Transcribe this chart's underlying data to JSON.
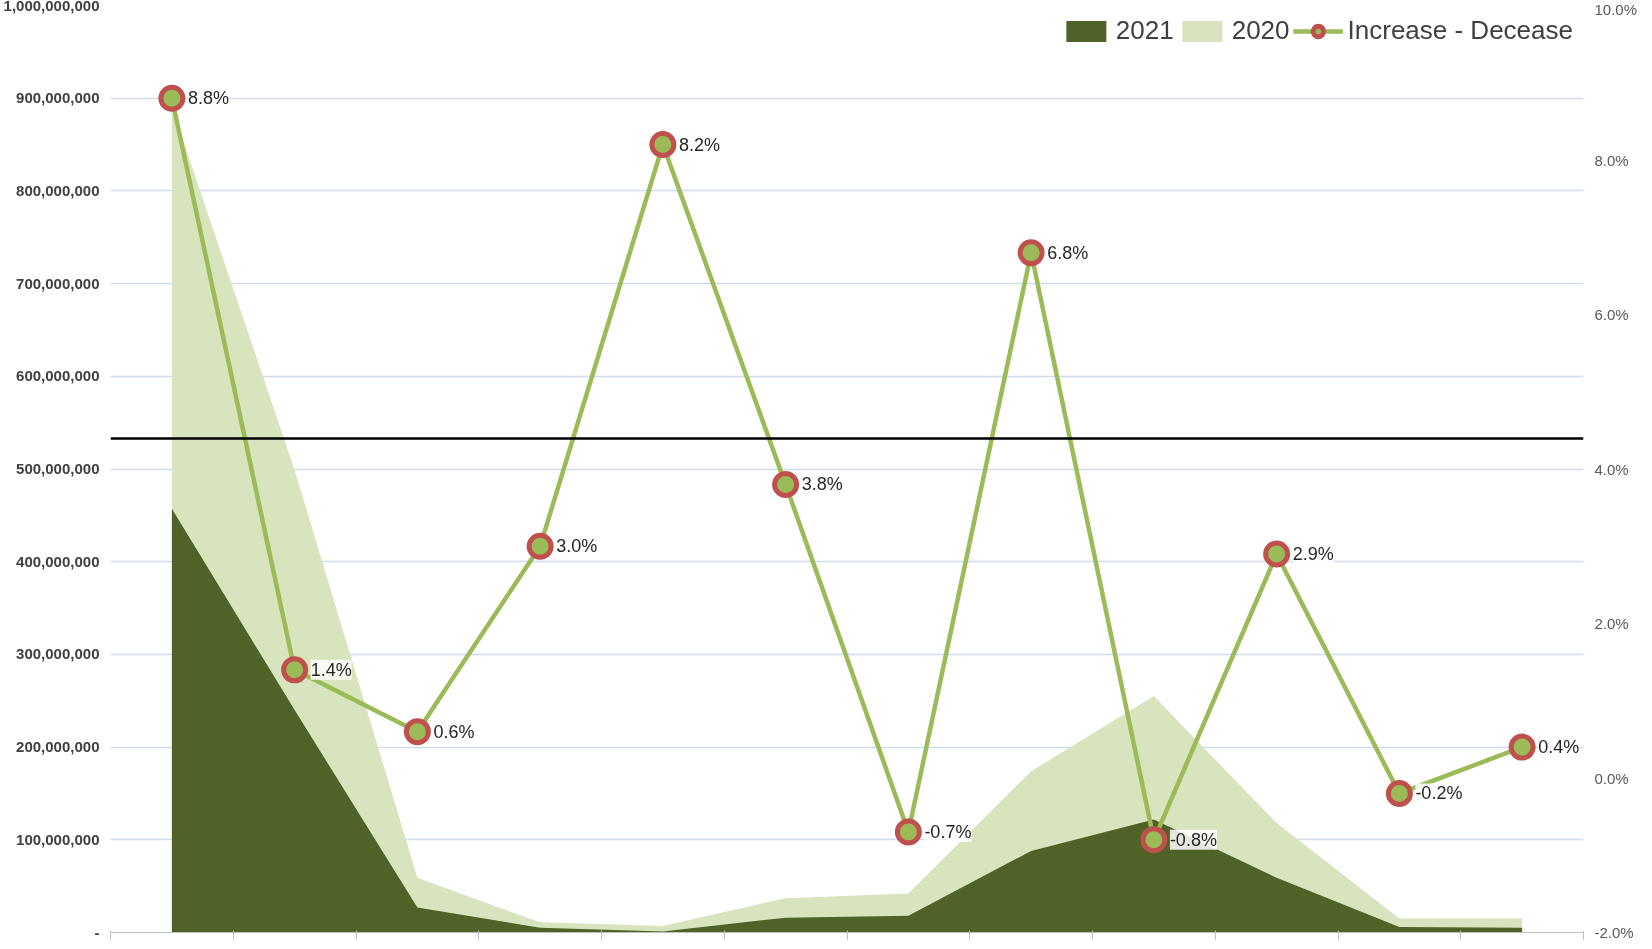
{
  "chart_data": {
    "type": "area",
    "categories": [
      null,
      null,
      null,
      null,
      null,
      null,
      null,
      null,
      null,
      null,
      null,
      null
    ],
    "series": [
      {
        "name": "2021",
        "color": "#4f6228",
        "values": [
          457000000,
          240000000,
          27000000,
          5000000,
          1000000,
          16000000,
          18000000,
          88000000,
          122000000,
          59000000,
          6000000,
          5000000
        ]
      },
      {
        "name": "2020",
        "color": "#d7e4bd",
        "values": [
          890000000,
          499000000,
          59000000,
          11000000,
          7000000,
          37000000,
          42000000,
          174000000,
          255000000,
          118000000,
          15000000,
          15000000
        ]
      },
      {
        "name": "Increase - Decease",
        "type": "line",
        "axis": "y2",
        "color": "#9bbb59",
        "marker": "circle",
        "values": [
          8.8,
          1.4,
          0.6,
          3.0,
          8.2,
          3.8,
          -0.7,
          6.8,
          -0.8,
          2.9,
          -0.2,
          0.4
        ],
        "value_labels": [
          "8.8%",
          "1.4%",
          "0.6%",
          "3.0%",
          "8.2%",
          "3.8%",
          "-0.7%",
          "6.8%",
          "-0.8%",
          "2.9%",
          "-0.2%",
          "0.4%"
        ]
      }
    ],
    "ylim": [
      0,
      1000000000
    ],
    "yticks": [
      {
        "value": 0,
        "label": "-"
      },
      {
        "value": 100000000,
        "label": "100,000,000"
      },
      {
        "value": 200000000,
        "label": "200,000,000"
      },
      {
        "value": 300000000,
        "label": "300,000,000"
      },
      {
        "value": 400000000,
        "label": "400,000,000"
      },
      {
        "value": 500000000,
        "label": "500,000,000"
      },
      {
        "value": 600000000,
        "label": "600,000,000"
      },
      {
        "value": 700000000,
        "label": "700,000,000"
      },
      {
        "value": 800000000,
        "label": "800,000,000"
      },
      {
        "value": 900000000,
        "label": "900,000,000"
      },
      {
        "value": 1000000000,
        "label": "1,000,000,000"
      }
    ],
    "y2lim": [
      -2,
      10
    ],
    "y2ticks": [
      {
        "value": -2,
        "label": "-2.0%"
      },
      {
        "value": 0,
        "label": "0.0%"
      },
      {
        "value": 2,
        "label": "2.0%"
      },
      {
        "value": 4,
        "label": "4.0%"
      },
      {
        "value": 6,
        "label": "6.0%"
      },
      {
        "value": 8,
        "label": "8.0%"
      },
      {
        "value": 10,
        "label": "10.0%"
      }
    ],
    "ref_lines": [
      {
        "axis": "y",
        "value": 533000000,
        "label": null,
        "color": "#000000"
      }
    ],
    "grid": "y",
    "legend": "top right"
  }
}
